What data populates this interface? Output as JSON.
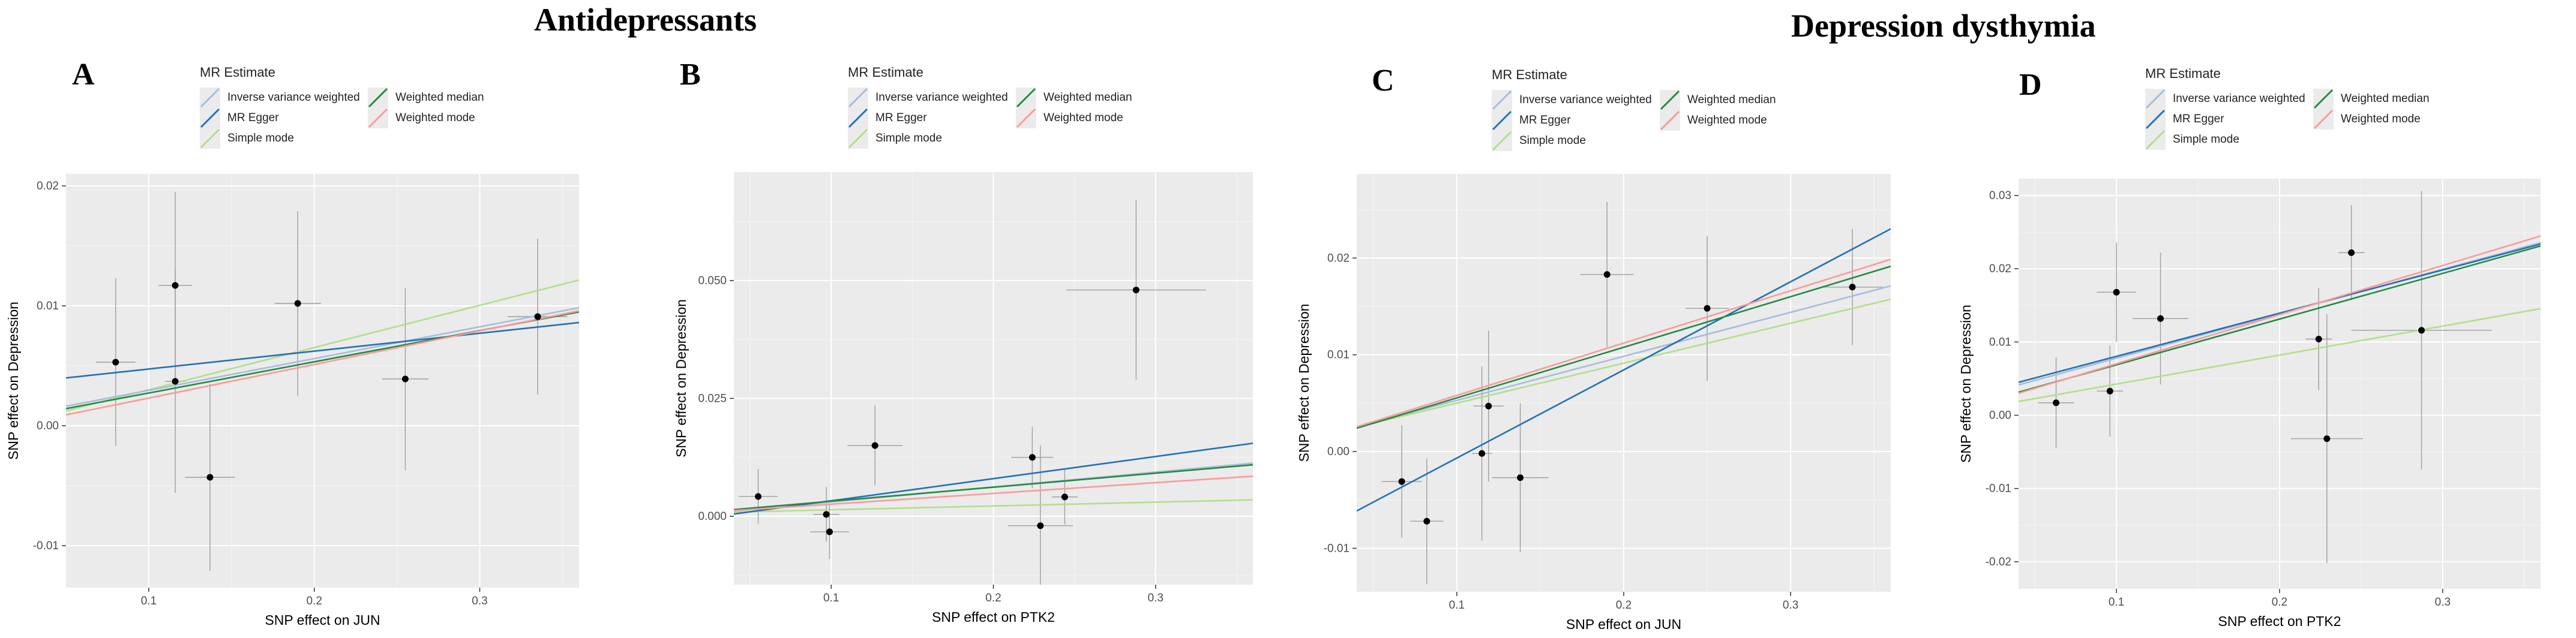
{
  "titles": {
    "left": "Antidepressants",
    "right": "Depression dysthymia"
  },
  "legend": {
    "title": "MR Estimate",
    "items": [
      {
        "label": "Inverse variance weighted",
        "color": "#a6bddb"
      },
      {
        "label": "Weighted median",
        "color": "#238b45"
      },
      {
        "label": "MR Egger",
        "color": "#2171b5"
      },
      {
        "label": "Weighted mode",
        "color": "#fb9a99"
      },
      {
        "label": "Simple mode",
        "color": "#b2df8a"
      }
    ]
  },
  "chart_data": [
    {
      "panel": "A",
      "type": "scatter",
      "xlabel": "SNP effect on JUN",
      "ylabel": "SNP effect on Depression",
      "xlim": [
        0.05,
        0.36
      ],
      "ylim": [
        -0.0135,
        0.021
      ],
      "xticks": [
        0.1,
        0.2,
        0.3
      ],
      "xtick_labels": [
        "0.1",
        "0.2",
        "0.3"
      ],
      "yticks": [
        -0.01,
        0.0,
        0.01,
        0.02
      ],
      "ytick_labels": [
        "-0.01",
        "0.00",
        "0.01",
        "0.02"
      ],
      "points": [
        {
          "x": 0.08,
          "y": 0.0053,
          "xerr": 0.012,
          "yerr": 0.007
        },
        {
          "x": 0.116,
          "y": 0.0117,
          "xerr": 0.01,
          "yerr": 0.0078
        },
        {
          "x": 0.116,
          "y": 0.0037,
          "xerr": 0.006,
          "yerr": 0.0093
        },
        {
          "x": 0.137,
          "y": -0.0043,
          "xerr": 0.015,
          "yerr": 0.0078
        },
        {
          "x": 0.19,
          "y": 0.0102,
          "xerr": 0.014,
          "yerr": 0.0077
        },
        {
          "x": 0.255,
          "y": 0.0039,
          "xerr": 0.014,
          "yerr": 0.0076
        },
        {
          "x": 0.335,
          "y": 0.0091,
          "xerr": 0.018,
          "yerr": 0.0065
        }
      ],
      "lines": [
        {
          "name": "Simple mode",
          "intercept": -0.00052,
          "slope": 0.0352
        },
        {
          "name": "Inverse variance weighted",
          "intercept": 0.0003,
          "slope": 0.0265
        },
        {
          "name": "MR Egger",
          "intercept": 0.00324,
          "slope": 0.0149
        },
        {
          "name": "Weighted median",
          "intercept": 0.000129,
          "slope": 0.026
        },
        {
          "name": "Weighted mode",
          "intercept": -0.000493,
          "slope": 0.028
        }
      ]
    },
    {
      "panel": "B",
      "type": "scatter",
      "xlabel": "SNP effect on PTK2",
      "ylabel": "SNP effect on Depression",
      "xlim": [
        0.04,
        0.36
      ],
      "ylim": [
        -0.0145,
        0.073
      ],
      "xticks": [
        0.1,
        0.2,
        0.3
      ],
      "xtick_labels": [
        "0.1",
        "0.2",
        "0.3"
      ],
      "yticks": [
        0.0,
        0.025,
        0.05
      ],
      "ytick_labels": [
        "0.000",
        "0.025",
        "0.050"
      ],
      "points": [
        {
          "x": 0.055,
          "y": 0.0042,
          "xerr": 0.012,
          "yerr": 0.0058
        },
        {
          "x": 0.097,
          "y": 0.0004,
          "xerr": 0.008,
          "yerr": 0.0058
        },
        {
          "x": 0.099,
          "y": -0.0033,
          "xerr": 0.012,
          "yerr": 0.0058
        },
        {
          "x": 0.127,
          "y": 0.015,
          "xerr": 0.017,
          "yerr": 0.0085
        },
        {
          "x": 0.224,
          "y": 0.0125,
          "xerr": 0.013,
          "yerr": 0.0065
        },
        {
          "x": 0.229,
          "y": -0.002,
          "xerr": 0.02,
          "yerr": 0.017
        },
        {
          "x": 0.244,
          "y": 0.0041,
          "xerr": 0.008,
          "yerr": 0.0058
        },
        {
          "x": 0.288,
          "y": 0.048,
          "xerr": 0.043,
          "yerr": 0.019
        }
      ],
      "lines": [
        {
          "name": "Simple mode",
          "intercept": 0.000564,
          "slope": 0.0081
        },
        {
          "name": "Inverse variance weighted",
          "intercept": -0.000111,
          "slope": 0.0316
        },
        {
          "name": "MR Egger",
          "intercept": -0.0014,
          "slope": 0.0469
        },
        {
          "name": "Weighted median",
          "intercept": 0.000226,
          "slope": 0.0297
        },
        {
          "name": "Weighted mode",
          "intercept": 0.000286,
          "slope": 0.0228
        }
      ]
    },
    {
      "panel": "C",
      "type": "scatter",
      "xlabel": "SNP effect on JUN",
      "ylabel": "SNP effect on Depression",
      "xlim": [
        0.04,
        0.36
      ],
      "ylim": [
        -0.0145,
        0.0287
      ],
      "xticks": [
        0.1,
        0.2,
        0.3
      ],
      "xtick_labels": [
        "0.1",
        "0.2",
        "0.3"
      ],
      "yticks": [
        -0.01,
        0.0,
        0.01,
        0.02
      ],
      "ytick_labels": [
        "-0.01",
        "0.00",
        "0.01",
        "0.02"
      ],
      "points": [
        {
          "x": 0.067,
          "y": -0.0031,
          "xerr": 0.012,
          "yerr": 0.0058
        },
        {
          "x": 0.082,
          "y": -0.0072,
          "xerr": 0.01,
          "yerr": 0.0065
        },
        {
          "x": 0.115,
          "y": -0.0002,
          "xerr": 0.006,
          "yerr": 0.009
        },
        {
          "x": 0.119,
          "y": 0.0047,
          "xerr": 0.009,
          "yerr": 0.0078
        },
        {
          "x": 0.138,
          "y": -0.0027,
          "xerr": 0.017,
          "yerr": 0.0077
        },
        {
          "x": 0.19,
          "y": 0.0183,
          "xerr": 0.016,
          "yerr": 0.0075
        },
        {
          "x": 0.25,
          "y": 0.0148,
          "xerr": 0.013,
          "yerr": 0.0075
        },
        {
          "x": 0.337,
          "y": 0.017,
          "xerr": 0.018,
          "yerr": 0.006
        }
      ],
      "lines": [
        {
          "name": "Simple mode",
          "intercept": 0.000873,
          "slope": 0.0413
        },
        {
          "name": "Inverse variance weighted",
          "intercept": 0.000743,
          "slope": 0.0455
        },
        {
          "name": "MR Egger",
          "intercept": -0.00978,
          "slope": 0.0911
        },
        {
          "name": "Weighted median",
          "intercept": 0.000318,
          "slope": 0.0523
        },
        {
          "name": "Weighted mode",
          "intercept": 0.000392,
          "slope": 0.0541
        }
      ]
    },
    {
      "panel": "D",
      "type": "scatter",
      "xlabel": "SNP effect on PTK2",
      "ylabel": "SNP effect on Depression",
      "xlim": [
        0.04,
        0.36
      ],
      "ylim": [
        -0.0237,
        0.0323
      ],
      "xticks": [
        0.1,
        0.2,
        0.3
      ],
      "xtick_labels": [
        "0.1",
        "0.2",
        "0.3"
      ],
      "yticks": [
        -0.02,
        -0.01,
        0.0,
        0.01,
        0.02,
        0.03
      ],
      "ytick_labels": [
        "-0.02",
        "-0.01",
        "0.00",
        "0.01",
        "0.02",
        "0.03"
      ],
      "points": [
        {
          "x": 0.063,
          "y": 0.0017,
          "xerr": 0.011,
          "yerr": 0.0062
        },
        {
          "x": 0.096,
          "y": 0.0033,
          "xerr": 0.008,
          "yerr": 0.0062
        },
        {
          "x": 0.1,
          "y": 0.0168,
          "xerr": 0.012,
          "yerr": 0.0068
        },
        {
          "x": 0.127,
          "y": 0.0132,
          "xerr": 0.017,
          "yerr": 0.009
        },
        {
          "x": 0.224,
          "y": 0.0104,
          "xerr": 0.008,
          "yerr": 0.007
        },
        {
          "x": 0.229,
          "y": -0.0032,
          "xerr": 0.022,
          "yerr": 0.017
        },
        {
          "x": 0.244,
          "y": 0.0222,
          "xerr": 0.008,
          "yerr": 0.0065
        },
        {
          "x": 0.287,
          "y": 0.0116,
          "xerr": 0.043,
          "yerr": 0.019
        }
      ],
      "lines": [
        {
          "name": "Simple mode",
          "intercept": 0.000296,
          "slope": 0.0396
        },
        {
          "name": "Inverse variance weighted",
          "intercept": 0.00172,
          "slope": 0.0607
        },
        {
          "name": "MR Egger",
          "intercept": 0.00214,
          "slope": 0.059
        },
        {
          "name": "Weighted median",
          "intercept": 0.000652,
          "slope": 0.0624
        },
        {
          "name": "Weighted mode",
          "intercept": 0.000319,
          "slope": 0.0671
        }
      ]
    }
  ]
}
